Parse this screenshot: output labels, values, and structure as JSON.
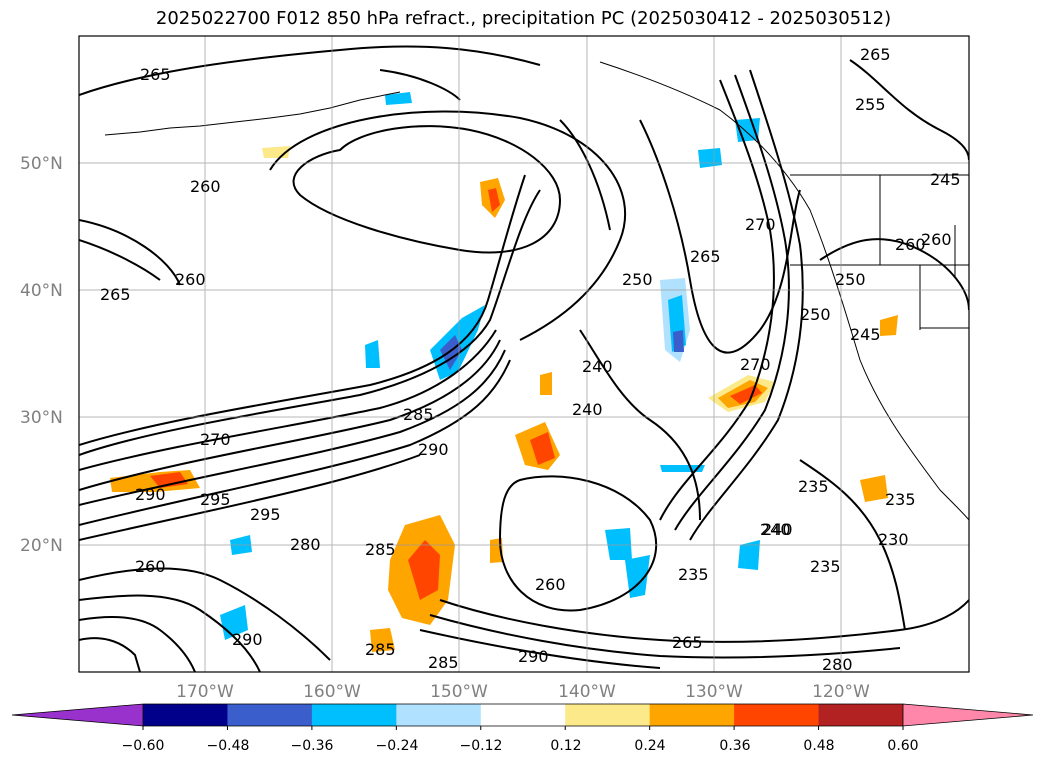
{
  "title": "2025022700 F012 850 hPa refract., precipitation PC (2025030412 - 2025030512)",
  "map": {
    "lat_labels": [
      "50°N",
      "40°N",
      "30°N",
      "20°N"
    ],
    "lon_labels": [
      "170°W",
      "160°W",
      "150°W",
      "140°W",
      "130°W",
      "120°W"
    ],
    "contour_labels": [
      "265",
      "265",
      "260",
      "260",
      "265",
      "260",
      "250",
      "265",
      "270",
      "250",
      "255",
      "245",
      "260",
      "250",
      "240",
      "245",
      "240",
      "270",
      "240",
      "285",
      "290",
      "270",
      "290",
      "295",
      "295",
      "280",
      "285",
      "260",
      "235",
      "235",
      "240",
      "235",
      "230",
      "260",
      "235",
      "265",
      "285",
      "285",
      "290",
      "280",
      "290"
    ]
  },
  "colorbar": {
    "ticks": [
      "−0.60",
      "−0.48",
      "−0.36",
      "−0.24",
      "−0.12",
      "0.12",
      "0.24",
      "0.36",
      "0.48",
      "0.60"
    ],
    "colors": [
      "#9932cc",
      "#00008b",
      "#3a5fcd",
      "#00bfff",
      "#b0e2ff",
      "#ffffff",
      "#fce98a",
      "#ffa500",
      "#ff4500",
      "#b22222",
      "#ff88aa"
    ]
  }
}
